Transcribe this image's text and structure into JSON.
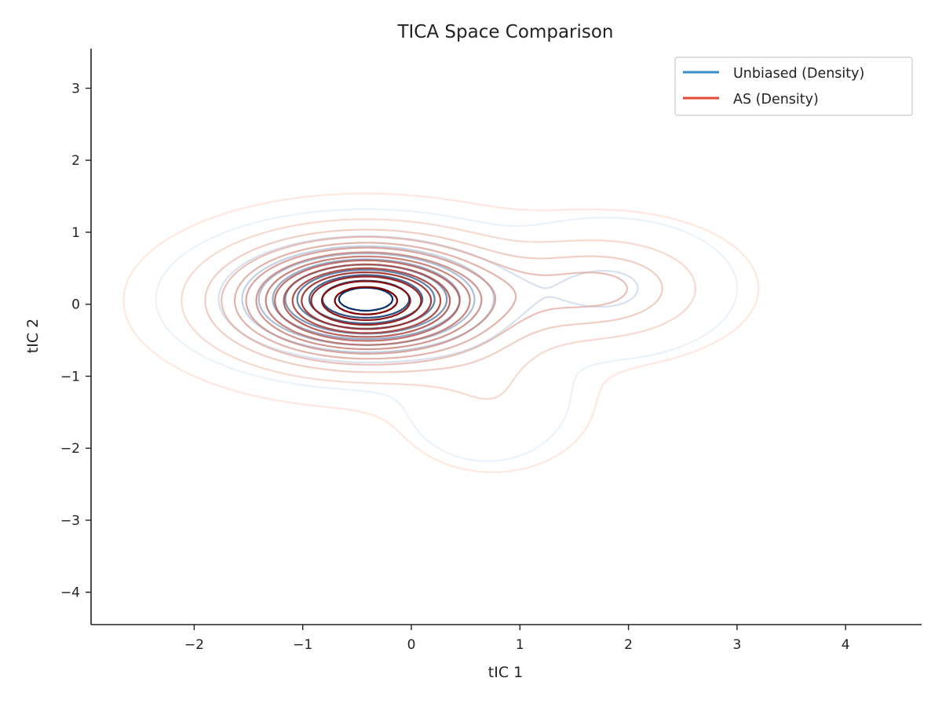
{
  "chart_data": {
    "type": "contour",
    "title": "TICA Space Comparison",
    "xlabel": "tIC 1",
    "ylabel": "tIC 2",
    "xlim": [
      -2.95,
      4.7
    ],
    "ylim": [
      -4.45,
      3.55
    ],
    "xticks": [
      -2,
      -1,
      0,
      1,
      2,
      3,
      4
    ],
    "yticks": [
      -4,
      -3,
      -2,
      -1,
      0,
      1,
      2,
      3
    ],
    "grid": false,
    "legend_position": "top-right",
    "series": [
      {
        "name": "Unbiased (Density)",
        "color": "#3a8ec8",
        "levels": 10,
        "modes": [
          {
            "x": -0.42,
            "y": 0.07,
            "peak": 1.0,
            "sx": 0.65,
            "sy": 0.42
          },
          {
            "x": 1.8,
            "y": 0.22,
            "peak": 0.13,
            "sx": 0.55,
            "sy": 0.45
          },
          {
            "x": 0.7,
            "y": -1.25,
            "peak": 0.05,
            "sx": 0.45,
            "sy": 0.55
          }
        ]
      },
      {
        "name": "AS (Density)",
        "color": "#e34a33",
        "levels": 15,
        "modes": [
          {
            "x": -0.42,
            "y": 0.05,
            "peak": 1.0,
            "sx": 0.75,
            "sy": 0.5
          },
          {
            "x": 1.75,
            "y": 0.22,
            "peak": 0.22,
            "sx": 0.6,
            "sy": 0.45
          },
          {
            "x": 0.75,
            "y": -1.3,
            "peak": 0.07,
            "sx": 0.5,
            "sy": 0.55
          }
        ]
      }
    ]
  }
}
